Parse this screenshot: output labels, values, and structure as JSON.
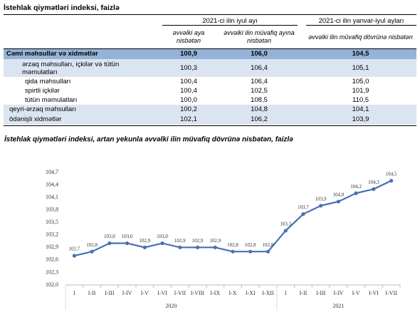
{
  "header": {
    "title": "İstehlak qiymətləri indeksi, faizlə"
  },
  "table": {
    "column_groups": [
      "2021-ci ilin iyul ayı",
      "2021-ci ilin yanvar-iyul ayları"
    ],
    "columns": [
      "əvvəlki aya nisbətən",
      "əvvəlki ilin müvafiq ayına nisbətən",
      "əvvəlki ilin müvafiq dövrünə nisbətən"
    ],
    "rows": [
      [
        "Cəmi məhsullar və xidmətlər",
        "100,9",
        "106,0",
        "104,5"
      ],
      [
        "ərzaq məhsulları, içkilər və tütün məmulatları",
        "100,3",
        "106,4",
        "105,1"
      ],
      [
        "qida məhsulları",
        "100,4",
        "106,4",
        "105,0"
      ],
      [
        "spirtli içkilər",
        "100,4",
        "102,5",
        "101,9"
      ],
      [
        "tütün məmulatları",
        "100,0",
        "108,5",
        "110,5"
      ],
      [
        "qeyri-ərzaq məhsulları",
        "100,2",
        "104,8",
        "104,1"
      ],
      [
        "ödənişli xidmətlər",
        "102,1",
        "106,2",
        "103,9"
      ]
    ]
  },
  "chart_data": {
    "type": "line",
    "title": "İstehlak qiymətləri indeksi, artan yekunla əvvəlki ilin müvafiq dövrünə nisbətən, faizlə",
    "categories": [
      "I",
      "I-II",
      "I-III",
      "I-IV",
      "I-V",
      "I-VI",
      "I-VII",
      "I-VIII",
      "I-IX",
      "I-X",
      "I-XI",
      "I-XII",
      "I",
      "I-II",
      "I-III",
      "I-IV",
      "I-V",
      "I-VI",
      "I-VII"
    ],
    "category_groups": [
      "2020",
      "2021"
    ],
    "values": [
      102.7,
      102.8,
      103.0,
      103.0,
      102.9,
      103.0,
      102.9,
      102.9,
      102.9,
      102.8,
      102.8,
      102.8,
      103.3,
      103.7,
      103.9,
      104.0,
      104.2,
      104.3,
      104.5
    ],
    "value_labels": [
      "102,7",
      "102,8",
      "103,0",
      "103,0",
      "102,9",
      "103,0",
      "102,9",
      "102,9",
      "102,9",
      "102,8",
      "102,8",
      "102,8",
      "103,3",
      "103,7",
      "103,9",
      "104,0",
      "104,2",
      "104,3",
      "104,5"
    ],
    "color": "#4a6fb5",
    "ylim": [
      102.0,
      104.7
    ],
    "yticks": [
      {
        "value": 102.0,
        "label": "102,0"
      },
      {
        "value": 102.3,
        "label": "102,3"
      },
      {
        "value": 102.6,
        "label": "102,6"
      },
      {
        "value": 102.9,
        "label": "102,9"
      },
      {
        "value": 103.2,
        "label": "103,2"
      },
      {
        "value": 103.5,
        "label": "103,5"
      },
      {
        "value": 103.8,
        "label": "103,8"
      },
      {
        "value": 104.1,
        "label": "104,1"
      },
      {
        "value": 104.4,
        "label": "104,4"
      },
      {
        "value": 104.7,
        "label": "104,7"
      }
    ],
    "grid": false
  }
}
